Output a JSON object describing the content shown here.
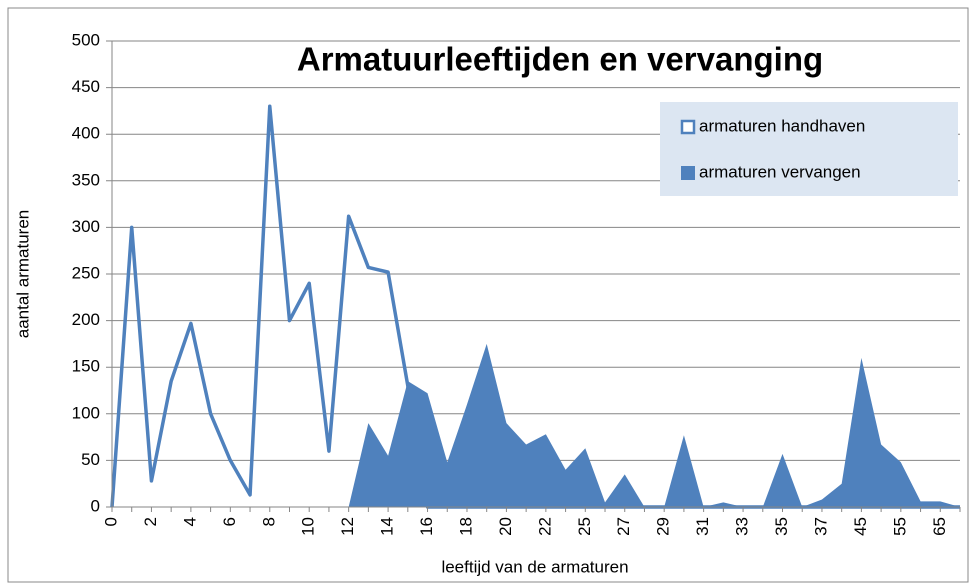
{
  "chart_data": {
    "type": "line-area",
    "title": "Armatuurleeftijden en vervanging",
    "x_label": "leeftijd van de armaturen",
    "y_label": "aantal armaturen",
    "categories": [
      "0",
      null,
      "2",
      null,
      "4",
      null,
      "6",
      null,
      "8",
      null,
      "10",
      null,
      "12",
      null,
      "14",
      null,
      "16",
      null,
      "18",
      null,
      "20",
      null,
      "22",
      null,
      "25",
      null,
      "27",
      null,
      "29",
      null,
      "31",
      null,
      "33",
      null,
      "35",
      null,
      "37",
      null,
      "45",
      null,
      "55",
      null,
      "65",
      null
    ],
    "series": [
      {
        "name": "armaturen handhaven",
        "kind": "line",
        "color": "#4f81bd",
        "values": [
          0,
          300,
          28,
          135,
          197,
          100,
          50,
          13,
          430,
          200,
          240,
          60,
          312,
          257,
          252,
          130,
          0,
          0,
          0,
          0,
          0,
          0,
          0,
          0,
          0,
          0,
          0,
          0,
          0,
          0,
          0,
          0,
          0,
          0,
          0,
          0,
          0,
          0,
          0,
          0,
          0,
          0,
          0,
          0
        ]
      },
      {
        "name": "armaturen vervangen",
        "kind": "area",
        "color": "#4f81bd",
        "values": [
          0,
          0,
          0,
          0,
          0,
          0,
          0,
          0,
          0,
          0,
          0,
          0,
          0,
          90,
          55,
          135,
          122,
          48,
          110,
          175,
          90,
          67,
          78,
          40,
          63,
          5,
          35,
          0,
          0,
          77,
          0,
          5,
          0,
          0,
          57,
          0,
          8,
          25,
          160,
          67,
          48,
          6,
          6,
          0
        ]
      }
    ],
    "ylim": [
      0,
      500
    ],
    "yticks": [
      0,
      50,
      100,
      150,
      200,
      250,
      300,
      350,
      400,
      450,
      500
    ],
    "grid": true
  }
}
